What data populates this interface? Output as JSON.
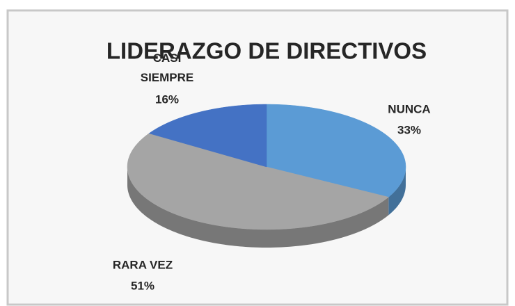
{
  "chart_data": {
    "type": "pie3d",
    "title": "LIDERAZGO DE DIRECTIVOS",
    "categories": [
      "NUNCA",
      "RARA VEZ",
      "CASI SIEMPRE"
    ],
    "values": [
      33,
      51,
      16
    ],
    "value_labels": [
      "33%",
      "51%",
      "16%"
    ],
    "colors": [
      "#5b9bd5",
      "#a5a5a5",
      "#4472c4"
    ]
  }
}
